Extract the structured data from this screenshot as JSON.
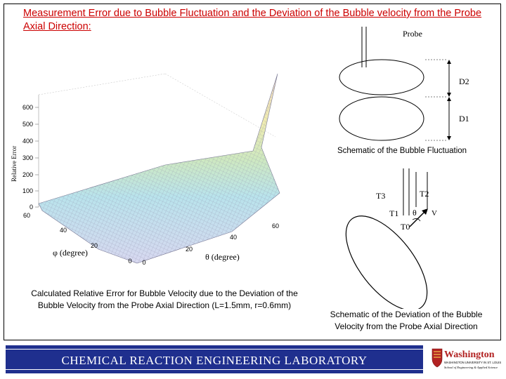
{
  "title": "Measurement Error due to Bubble Fluctuation and the Deviation of the Bubble velocity from the Probe Axial Direction:",
  "plot3d": {
    "z_ticks": [
      "600",
      "500",
      "400",
      "300",
      "200",
      "100",
      "0"
    ],
    "z_label": "Relative Error",
    "phi_ticks": [
      "60",
      "40",
      "20",
      "0"
    ],
    "theta_ticks": [
      "60",
      "40",
      "20",
      "0"
    ],
    "phi_axis_label": "φ (degree)",
    "theta_axis_label": "θ (degree)"
  },
  "caption_left": "Calculated Relative Error for Bubble Velocity due to the Deviation of the Bubble Velocity from the Probe Axial Direction (L=1.5mm, r=0.6mm)",
  "fluctuation": {
    "probe_label": "Probe",
    "d2_label": "D2",
    "d1_label": "D1",
    "caption": "Schematic of the Bubble Fluctuation"
  },
  "deviation": {
    "t3_label": "T3",
    "t2_label": "T2",
    "t1_label": "T1",
    "t0_label": "T0",
    "theta_label": "θ",
    "v_label": "V",
    "caption": "Schematic of the Deviation of the Bubble Velocity from the Probe Axial Direction"
  },
  "footer": {
    "lab_name": "CHEMICAL REACTION ENGINEERING LABORATORY",
    "logo_name": "Washington",
    "logo_line1": "WASHINGTON UNIVERSITY IN ST. LOUIS",
    "logo_line2": "School of Engineering & Applied Science"
  },
  "colors": {
    "title": "#cc0000",
    "banner": "#1f2f8e",
    "logo_red": "#b22222"
  }
}
